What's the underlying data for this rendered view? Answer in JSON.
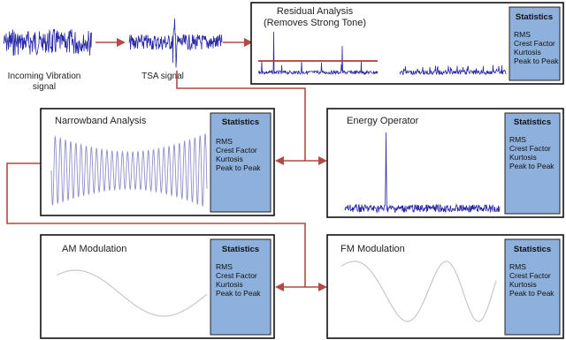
{
  "colors": {
    "signal": "#2a2aa6",
    "signal_light": "#8f8fc8",
    "arrow": "#b04a44",
    "stats_fill": "#8db0dc",
    "box_border": "#111111",
    "smooth_curve": "#c8c8c8",
    "threshold_line": "#b03a3a"
  },
  "signals": {
    "incoming_label_line1": "Incoming Vibration",
    "incoming_label_line2": "signal",
    "tsa_label": "TSA signal"
  },
  "panels": {
    "residual": {
      "title_line1": "Residual Analysis",
      "title_line2": "(Removes Strong Tone)",
      "stats_title": "Statistics",
      "stats_items": [
        "RMS",
        "Crest Factor",
        "Kurtosis",
        "Peak to Peak"
      ]
    },
    "narrowband": {
      "title": "Narrowband Analysis",
      "stats_title": "Statistics",
      "stats_items": [
        "RMS",
        "Crest Factor",
        "Kurtosis",
        "Peak to Peak"
      ]
    },
    "energy": {
      "title": "Energy Operator",
      "stats_title": "Statistics",
      "stats_items": [
        "RMS",
        "Crest Factor",
        "Kurtosis",
        "Peak to Peak"
      ]
    },
    "am": {
      "title": "AM Modulation",
      "stats_title": "Statistics",
      "stats_items": [
        "RMS",
        "Crest Factor",
        "Kurtosis",
        "Peak to Peak"
      ]
    },
    "fm": {
      "title": "FM Modulation",
      "stats_title": "Statistics",
      "stats_items": [
        "RMS",
        "Crest Factor",
        "Kurtosis",
        "Peak to Peak"
      ]
    }
  }
}
